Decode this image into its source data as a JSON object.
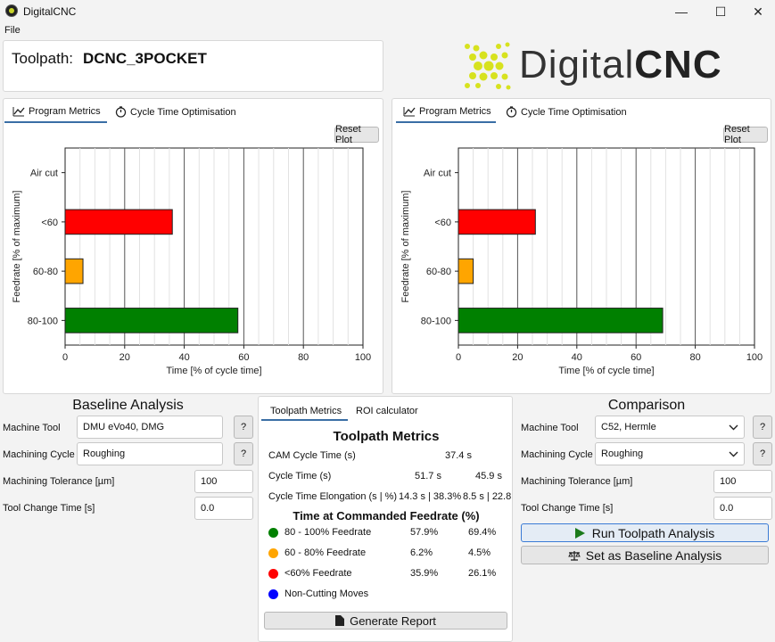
{
  "window": {
    "title": "DigitalCNC",
    "minimize": "—",
    "maximize": "☐",
    "close": "✕"
  },
  "menu": {
    "file": "File"
  },
  "toolpath": {
    "label": "Toolpath:",
    "name": "DCNC_3POCKET"
  },
  "logo": {
    "text_light": "Digital",
    "text_bold": "CNC"
  },
  "tabs": {
    "program_metrics": "Program Metrics",
    "cycle_time_opt": "Cycle Time Optimisation",
    "reset_plot": "Reset Plot"
  },
  "chart_data": [
    {
      "type": "bar",
      "orientation": "horizontal",
      "categories": [
        "Air cut",
        "<60",
        "60-80",
        "80-100"
      ],
      "values": [
        0,
        36,
        6,
        58
      ],
      "colors": [
        "#808080",
        "#ff0000",
        "#ffa500",
        "#008000"
      ],
      "xlabel": "Time [% of cycle time]",
      "ylabel": "Feedrate [% of maximum]",
      "xlim": [
        0,
        100
      ],
      "xticks": [
        "0",
        "20",
        "40",
        "60",
        "80",
        "100"
      ]
    },
    {
      "type": "bar",
      "orientation": "horizontal",
      "categories": [
        "Air cut",
        "<60",
        "60-80",
        "80-100"
      ],
      "values": [
        0,
        26,
        5,
        69
      ],
      "colors": [
        "#808080",
        "#ff0000",
        "#ffa500",
        "#008000"
      ],
      "xlabel": "Time [% of cycle time]",
      "ylabel": "Feedrate [% of maximum]",
      "xlim": [
        0,
        100
      ],
      "xticks": [
        "0",
        "20",
        "40",
        "60",
        "80",
        "100"
      ]
    }
  ],
  "baseline": {
    "title": "Baseline Analysis",
    "machine_tool_label": "Machine Tool",
    "machine_tool_value": "DMU eVo40, DMG",
    "machining_cycle_label": "Machining Cycle",
    "machining_cycle_value": "Roughing",
    "tolerance_label": "Machining Tolerance [µm]",
    "tolerance_value": "100",
    "tool_change_label": "Tool Change Time [s]",
    "tool_change_value": "0.0",
    "help": "?"
  },
  "metrics": {
    "tab_toolpath": "Toolpath Metrics",
    "tab_roi": "ROI calculator",
    "title": "Toolpath Metrics",
    "cam_cycle_label": "CAM Cycle Time (s)",
    "cam_cycle_value": "37.4 s",
    "cycle_label": "Cycle Time (s)",
    "cycle_base": "51.7 s",
    "cycle_comp": "45.9 s",
    "elong_label": "Cycle Time Elongation (s | %)",
    "elong_base": "14.3 s | 38.3%",
    "elong_comp": "8.5 s | 22.8",
    "feed_title": "Time at Commanded Feedrate (%)",
    "rows": [
      {
        "label": "80 - 100% Feedrate",
        "base": "57.9%",
        "comp": "69.4%",
        "color": "#008000"
      },
      {
        "label": "60 - 80% Feedrate",
        "base": "6.2%",
        "comp": "4.5%",
        "color": "#ffa500"
      },
      {
        "label": "<60% Feedrate",
        "base": "35.9%",
        "comp": "26.1%",
        "color": "#ff0000"
      },
      {
        "label": "Non-Cutting Moves",
        "base": "",
        "comp": "",
        "color": "#0000ff"
      }
    ],
    "generate_report": "Generate Report"
  },
  "comparison": {
    "title": "Comparison",
    "machine_tool_label": "Machine Tool",
    "machine_tool_value": "C52, Hermle",
    "machining_cycle_label": "Machining Cycle",
    "machining_cycle_value": "Roughing",
    "tolerance_label": "Machining Tolerance [µm]",
    "tolerance_value": "100",
    "tool_change_label": "Tool Change Time [s]",
    "tool_change_value": "0.0",
    "help": "?",
    "run_button": "Run Toolpath Analysis",
    "baseline_button": "Set as Baseline Analysis"
  }
}
